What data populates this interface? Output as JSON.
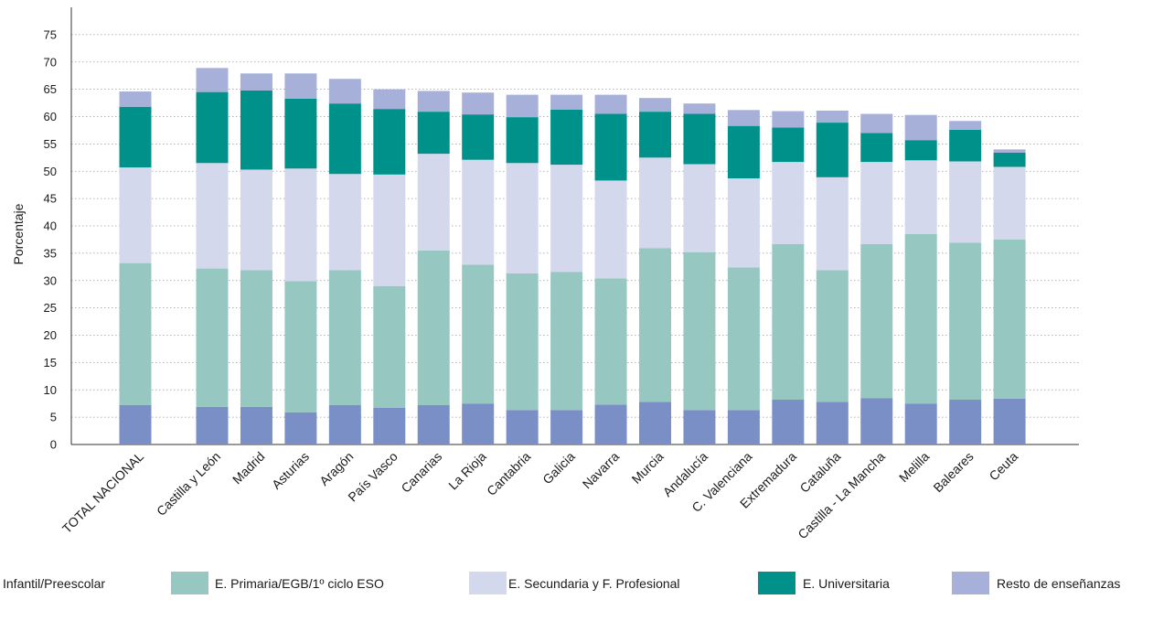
{
  "chart_data": {
    "type": "bar",
    "stacked": true,
    "title": "",
    "xlabel": "",
    "ylabel": "Porcentaje",
    "ylim": [
      0,
      80
    ],
    "yticks": [
      0,
      5,
      10,
      15,
      20,
      25,
      30,
      35,
      40,
      45,
      50,
      55,
      60,
      65,
      70,
      75
    ],
    "grid": true,
    "legend_position": "bottom",
    "categories": [
      "TOTAL NACIONAL",
      "Castilla y León",
      "Madrid",
      "Asturias",
      "Aragón",
      "País Vasco",
      "Canarias",
      "La Rioja",
      "Cantabria",
      "Galicia",
      "Navarra",
      "Murcia",
      "Andalucía",
      "C. Valenciana",
      "Extremadura",
      "Cataluña",
      "Castilla - La Mancha",
      "Melilla",
      "Baleares",
      "Ceuta"
    ],
    "series": [
      {
        "name": "Infantil/Preescolar",
        "color": "#7b8fc7",
        "values": [
          7.2,
          6.9,
          6.9,
          5.9,
          7.2,
          6.7,
          7.2,
          7.5,
          6.3,
          6.3,
          7.3,
          7.8,
          6.3,
          6.3,
          8.2,
          7.8,
          8.5,
          7.5,
          8.2,
          8.4
        ]
      },
      {
        "name": "E. Primaria/EGB/1º ciclo ESO",
        "color": "#96c8c1",
        "values": [
          26.0,
          25.3,
          25.0,
          24.0,
          24.7,
          22.3,
          28.3,
          25.4,
          25.0,
          25.3,
          23.1,
          28.1,
          28.9,
          26.1,
          28.5,
          24.1,
          28.2,
          31.0,
          28.7,
          29.1
        ]
      },
      {
        "name": "E. Secundaria y F. Profesional",
        "color": "#d3d8ec",
        "values": [
          17.5,
          19.3,
          18.4,
          20.6,
          17.6,
          20.4,
          17.7,
          19.2,
          20.2,
          19.6,
          17.9,
          16.6,
          16.1,
          16.3,
          15.0,
          17.0,
          15.0,
          13.5,
          14.9,
          13.3
        ]
      },
      {
        "name": "E. Universitaria",
        "color": "#00928a",
        "values": [
          11.1,
          13.0,
          14.5,
          12.8,
          12.9,
          12.0,
          7.7,
          8.3,
          8.4,
          10.1,
          12.2,
          8.4,
          9.2,
          9.6,
          6.3,
          10.0,
          5.3,
          3.7,
          5.8,
          2.6
        ]
      },
      {
        "name": "Resto de enseñanzas",
        "color": "#a7b0d8",
        "values": [
          2.8,
          4.4,
          3.1,
          4.6,
          4.5,
          3.6,
          3.8,
          4.0,
          4.1,
          2.7,
          3.5,
          2.5,
          1.9,
          2.9,
          3.0,
          2.2,
          3.5,
          4.6,
          1.6,
          0.6
        ]
      }
    ]
  }
}
